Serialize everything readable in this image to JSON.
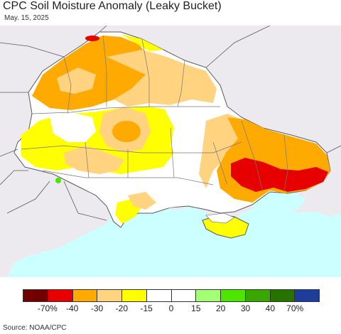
{
  "title": "CPC Soil Moisture Anomaly (Leaky Bucket)",
  "date": "May. 15, 2025",
  "source": "Source: NOAA/CPC",
  "colors": {
    "background_land": "#eceaee",
    "sea": "#ccffff",
    "border": "#5a5a5a"
  },
  "legend": {
    "swatches": [
      {
        "color": "#730000",
        "name": "extreme-dry"
      },
      {
        "color": "#e60000",
        "name": "very-dry"
      },
      {
        "color": "#ffaa00",
        "name": "dry"
      },
      {
        "color": "#ffd37f",
        "name": "moderately-dry"
      },
      {
        "color": "#ffff00",
        "name": "slightly-dry"
      },
      {
        "color": "#ffffff",
        "name": "near-normal-dry"
      },
      {
        "color": "#ffffff",
        "name": "near-normal-wet"
      },
      {
        "color": "#a3ff73",
        "name": "slightly-wet"
      },
      {
        "color": "#4ce600",
        "name": "moderately-wet"
      },
      {
        "color": "#38a800",
        "name": "wet"
      },
      {
        "color": "#267300",
        "name": "very-wet"
      },
      {
        "color": "#1e3c99",
        "name": "extreme-wet"
      }
    ],
    "labels": [
      "-70%",
      "-40",
      "-30",
      "-20",
      "-15",
      "0",
      "15",
      "20",
      "30",
      "40",
      "70%"
    ]
  }
}
